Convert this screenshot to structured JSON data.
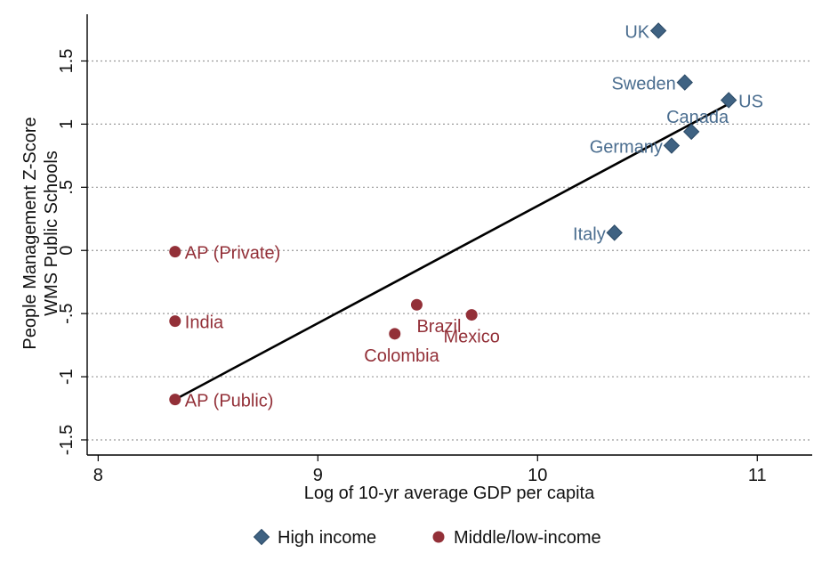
{
  "chart_data": {
    "type": "scatter",
    "ylabel_lines": [
      "People Management Z-Score",
      "WMS Public Schools"
    ],
    "xlabel": "Log of 10-yr average GDP per capita",
    "xlim": [
      7.95,
      11.25
    ],
    "ylim": [
      -1.62,
      1.87
    ],
    "x_ticks": [
      8,
      9,
      10,
      11
    ],
    "x_tick_labels": [
      "8",
      "9",
      "10",
      "11"
    ],
    "y_ticks": [
      -1.5,
      -1,
      -0.5,
      0,
      0.5,
      1,
      1.5
    ],
    "y_tick_labels": [
      "-1.5",
      "-1",
      "-.5",
      "0",
      ".5",
      "1",
      "1.5"
    ],
    "grid": true,
    "grid_style": "dotted horizontal",
    "series": [
      {
        "name": "High income",
        "marker": "diamond",
        "color": "#3f6282",
        "label_color": "#4a6d8f",
        "points": [
          {
            "label": "UK",
            "x": 10.55,
            "y": 1.74,
            "label_pos": "left"
          },
          {
            "label": "Sweden",
            "x": 10.67,
            "y": 1.33,
            "label_pos": "left"
          },
          {
            "label": "US",
            "x": 10.87,
            "y": 1.19,
            "label_pos": "right"
          },
          {
            "label": "Canada",
            "x": 10.7,
            "y": 0.94,
            "label_pos": "above-left"
          },
          {
            "label": "Germany",
            "x": 10.61,
            "y": 0.83,
            "label_pos": "left"
          },
          {
            "label": "Italy",
            "x": 10.35,
            "y": 0.14,
            "label_pos": "left"
          }
        ]
      },
      {
        "name": "Middle/low-income",
        "marker": "circle",
        "color": "#933038",
        "label_color": "#933038",
        "points": [
          {
            "label": "AP (Private)",
            "x": 8.35,
            "y": -0.01,
            "label_pos": "right"
          },
          {
            "label": "India",
            "x": 8.35,
            "y": -0.56,
            "label_pos": "right"
          },
          {
            "label": "AP (Public)",
            "x": 8.35,
            "y": -1.18,
            "label_pos": "right"
          },
          {
            "label": "Brazil",
            "x": 9.45,
            "y": -0.43,
            "label_pos": "below-left"
          },
          {
            "label": "Mexico",
            "x": 9.7,
            "y": -0.51,
            "label_pos": "below"
          },
          {
            "label": "Colombia",
            "x": 9.35,
            "y": -0.66,
            "label_pos": "below-left"
          }
        ]
      }
    ],
    "fit_line": {
      "x": [
        8.35,
        10.87
      ],
      "y": [
        -1.18,
        1.16
      ]
    },
    "legend": {
      "position": "bottom",
      "entries": [
        "High income",
        "Middle/low-income"
      ]
    }
  }
}
